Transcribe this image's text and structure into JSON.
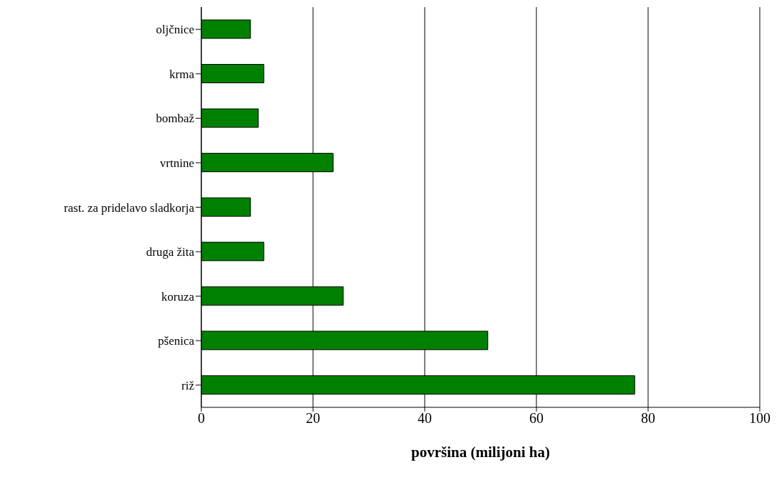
{
  "chart_data": {
    "type": "bar",
    "orientation": "horizontal",
    "xlabel": "površina (milijoni ha)",
    "categories": [
      "oljčnice",
      "krma",
      "bombaž",
      "vrtnine",
      "rast. za pridelavo sladkorja",
      "druga žita",
      "koruza",
      "pšenica",
      "riž"
    ],
    "values": [
      8.8,
      11.2,
      10.2,
      23.6,
      8.8,
      11.2,
      25.4,
      51.3,
      77.6
    ],
    "color": "#008000",
    "xlim": [
      0,
      100
    ],
    "xticks": [
      0,
      20,
      40,
      60,
      80,
      100
    ],
    "grid": "x"
  }
}
